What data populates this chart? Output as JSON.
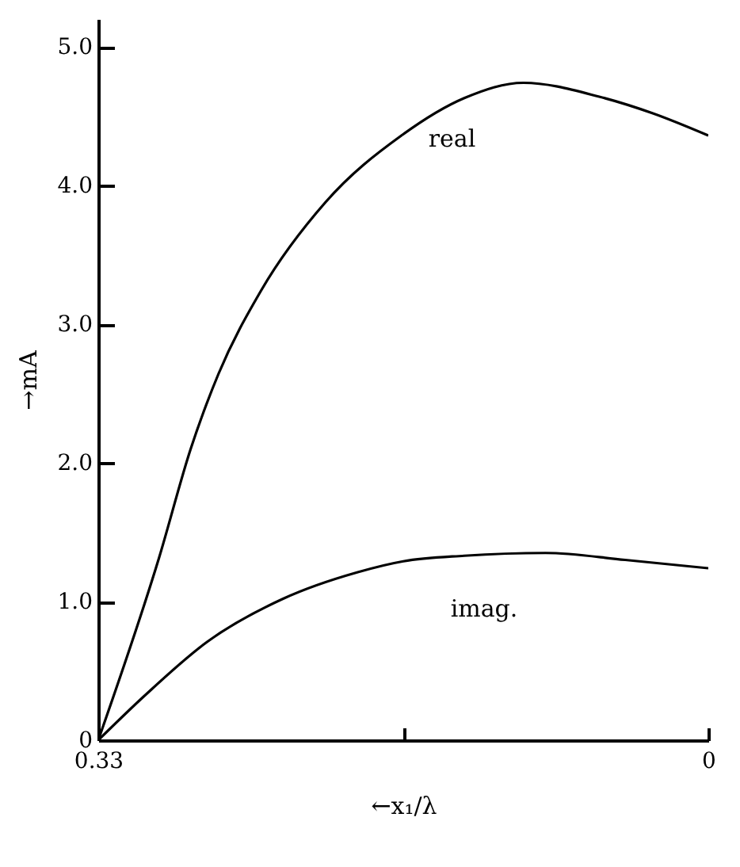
{
  "chart_data": {
    "type": "line",
    "xlabel": "←x₁/λ",
    "ylabel": "→mA",
    "xlim": [
      0.33,
      0
    ],
    "xticks": [
      0.33,
      {
        "value": 0.165,
        "label": null
      },
      0
    ],
    "ylim": [
      0,
      5.2
    ],
    "yticks": [
      0,
      {
        "value": 1,
        "label": "1.0"
      },
      {
        "value": 2,
        "label": "2.0"
      },
      {
        "value": 3,
        "label": "3.0"
      },
      {
        "value": 4,
        "label": "4.0"
      },
      {
        "value": 5,
        "label": "5.0"
      }
    ],
    "grid": false,
    "legend": false,
    "marker": "none",
    "line_style": "solid",
    "series": [
      {
        "name": "real",
        "color": "#000000",
        "x": [
          0.33,
          0.297,
          0.28,
          0.265,
          0.242,
          0.207,
          0.166,
          0.132,
          0.1,
          0.059,
          0.03,
          0
        ],
        "values": [
          0,
          1.32,
          2.1,
          2.64,
          3.24,
          3.88,
          4.36,
          4.63,
          4.74,
          4.64,
          4.52,
          4.36
        ]
      },
      {
        "name": "imag.",
        "color": "#000000",
        "x": [
          0.33,
          0.305,
          0.271,
          0.23,
          0.19,
          0.165,
          0.132,
          0.088,
          0.045,
          0
        ],
        "values": [
          0,
          0.32,
          0.71,
          1.02,
          1.21,
          1.29,
          1.33,
          1.35,
          1.3,
          1.24
        ]
      }
    ]
  }
}
